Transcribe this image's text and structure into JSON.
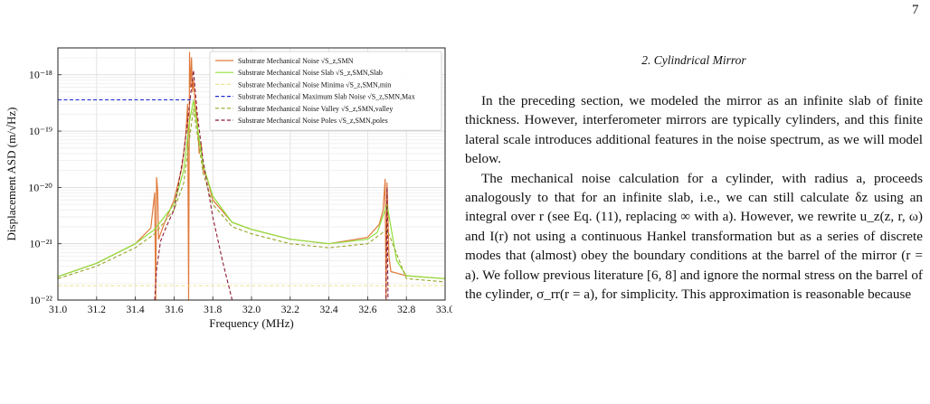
{
  "page": {
    "number": "7"
  },
  "section": {
    "heading": "2.   Cylindrical Mirror"
  },
  "paragraphs": [
    "In the preceding section, we modeled the mirror as an infinite slab of finite thickness. However, interferometer mirrors are typically cylinders, and this finite lateral scale introduces additional features in the noise spectrum, as we will model below.",
    "The mechanical noise calculation for a cylinder, with radius a, proceeds analogously to that for an infinite slab, i.e., we can still calculate δz using an integral over r (see Eq. (11), replacing ∞ with a). However, we rewrite u_z(z, r, ω) and I(r) not using a continuous Hankel transformation but as a series of discrete modes that (almost) obey the boundary conditions at the barrel of the mirror (r = a). We follow previous literature [6, 8] and ignore the normal stress on the barrel of the cylinder, σ_rr(r = a), for simplicity. This approximation is reasonable because"
  ],
  "chart_data": {
    "type": "line",
    "xlabel": "Frequency (MHz)",
    "ylabel": "Displacement ASD (m/√Hz)",
    "x_scale": "linear",
    "y_scale": "log",
    "xlim": [
      31.0,
      33.0
    ],
    "ylim": [
      1e-22,
      3e-18
    ],
    "x_ticks": [
      "31.0",
      "31.2",
      "31.4",
      "31.6",
      "31.8",
      "32.0",
      "32.2",
      "32.4",
      "32.6",
      "32.8",
      "33.0"
    ],
    "y_ticks": [
      {
        "value": 1e-22,
        "label": "10⁻²²"
      },
      {
        "value": 1e-21,
        "label": "10⁻²¹"
      },
      {
        "value": 1e-20,
        "label": "10⁻²⁰"
      },
      {
        "value": 1e-19,
        "label": "10⁻¹⁹"
      },
      {
        "value": 1e-18,
        "label": "10⁻¹⁸"
      }
    ],
    "grid": true,
    "legend_position": "top-right",
    "series": [
      {
        "name": "Substrate Mechanical Noise √S_z,SMN",
        "color": "#e07a3c",
        "style": "solid",
        "x": [
          31.0,
          31.2,
          31.4,
          31.48,
          31.5,
          31.505,
          31.51,
          31.515,
          31.52,
          31.53,
          31.55,
          31.6,
          31.64,
          31.66,
          31.67,
          31.675,
          31.68,
          31.685,
          31.69,
          31.695,
          31.7,
          31.71,
          31.72,
          31.73,
          31.74,
          31.75,
          31.77,
          31.8,
          31.9,
          32.0,
          32.2,
          32.4,
          32.6,
          32.66,
          32.68,
          32.69,
          32.695,
          32.7,
          32.705,
          32.71,
          32.72,
          32.8,
          33.0
        ],
        "y": [
          2.6e-22,
          4.5e-22,
          1e-21,
          1.9e-21,
          8e-21,
          1e-22,
          1.5e-20,
          9e-21,
          1.2e-21,
          1.5e-21,
          2.3e-21,
          6e-21,
          2.2e-20,
          8e-20,
          3e-19,
          1e-22,
          2.5e-18,
          6e-19,
          2e-18,
          5e-19,
          8e-19,
          3e-19,
          1.5e-19,
          4e-20,
          6e-20,
          2e-20,
          1.5e-20,
          6e-21,
          2.4e-21,
          1.8e-21,
          1.2e-21,
          1e-21,
          1.3e-21,
          2.2e-21,
          4e-21,
          1.4e-20,
          1e-22,
          1.2e-20,
          3e-21,
          6e-22,
          3.2e-22,
          2.7e-22,
          2.4e-22
        ]
      },
      {
        "name": "Substrate Mechanical Noise Slab √S_z,SMN,Slab",
        "color": "#8fe03a",
        "style": "solid",
        "x": [
          31.0,
          31.2,
          31.4,
          31.5,
          31.6,
          31.65,
          31.68,
          31.7,
          31.72,
          31.75,
          31.8,
          31.9,
          32.0,
          32.2,
          32.4,
          32.6,
          32.65,
          32.7,
          32.75,
          32.8,
          33.0
        ],
        "y": [
          2.6e-22,
          4.5e-22,
          1e-21,
          1.8e-21,
          5e-21,
          2e-20,
          1.5e-19,
          3.5e-19,
          1.2e-19,
          2.5e-20,
          7e-21,
          2.4e-21,
          1.8e-21,
          1.2e-21,
          1e-21,
          1.2e-21,
          1.6e-21,
          5e-21,
          5e-22,
          2.7e-22,
          2.4e-22
        ]
      },
      {
        "name": "Substrate Mechanical Noise Minima √S_z,SMN,min",
        "color": "#efe49a",
        "style": "dashed",
        "x": [
          31.0,
          33.0
        ],
        "y": [
          1.8e-22,
          1.8e-22
        ]
      },
      {
        "name": "Substrate Mechanical Maximum Slab Noise √S_z,SMN,Max",
        "color": "#1f2ccf",
        "style": "dashed",
        "x": [
          31.0,
          31.7
        ],
        "y": [
          3.6e-19,
          3.6e-19
        ]
      },
      {
        "name": "Substrate Mechanical Noise Valley √S_z,SMN,valley",
        "color": "#9aa52a",
        "style": "dashed",
        "x": [
          31.0,
          31.2,
          31.4,
          31.5,
          31.6,
          31.65,
          31.7,
          31.75,
          31.8,
          31.9,
          32.0,
          32.2,
          32.4,
          32.6,
          32.7,
          32.8,
          33.0
        ],
        "y": [
          2.4e-22,
          4e-22,
          8.5e-22,
          1.5e-21,
          4e-21,
          1.2e-20,
          2.5e-19,
          1.8e-20,
          5e-21,
          2e-21,
          1.5e-21,
          1e-21,
          8.5e-22,
          1e-21,
          1.8e-21,
          2.4e-22,
          2.1e-22
        ]
      },
      {
        "name": "Substrate Mechanical Noise Poles √S_z,SMN,poles",
        "color": "#8b1c34",
        "style": "dashed",
        "x": [
          31.5,
          31.51,
          31.53,
          31.56,
          31.6,
          31.65,
          31.68,
          31.7,
          31.72,
          31.75,
          31.8,
          31.85,
          31.9,
          32.695,
          32.7,
          32.705
        ],
        "y": [
          1e-22,
          3.5e-22,
          1.1e-21,
          2e-21,
          4e-21,
          4e-20,
          3e-19,
          1.2e-18,
          2e-19,
          3e-20,
          3e-21,
          5e-22,
          1e-22,
          1e-22,
          1e-20,
          1e-22
        ]
      }
    ]
  }
}
